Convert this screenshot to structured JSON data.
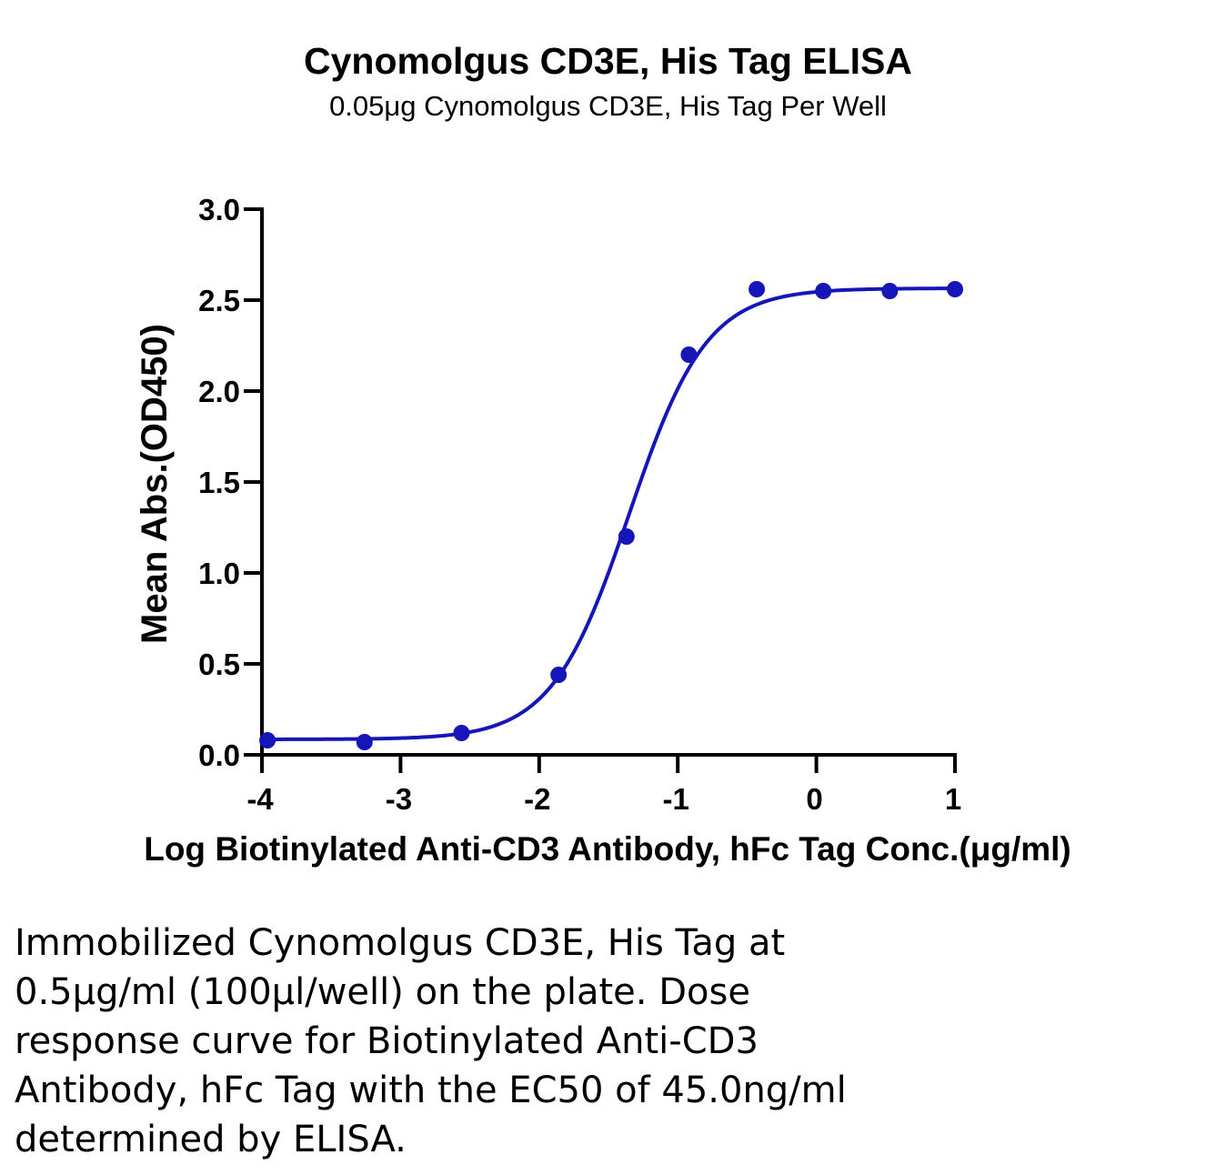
{
  "chart_data": {
    "type": "scatter",
    "title": "Cynomolgus CD3E, His Tag ELISA",
    "subtitle": "0.05μg Cynomolgus CD3E, His Tag Per Well",
    "xlabel": "Log Biotinylated Anti-CD3 Antibody, hFc Tag Conc.(μg/ml)",
    "ylabel": "Mean Abs.(OD450)",
    "xlim": [
      -4,
      1
    ],
    "ylim": [
      0,
      3.0
    ],
    "xticks": [
      -4,
      -3,
      -2,
      -1,
      0,
      1
    ],
    "xtick_labels": [
      "-4",
      "-3",
      "-2",
      "-1",
      "0",
      "1"
    ],
    "yticks": [
      0,
      0.5,
      1.0,
      1.5,
      2.0,
      2.5,
      3.0
    ],
    "ytick_labels": [
      "0.0",
      "0.5",
      "1.0",
      "1.5",
      "2.0",
      "2.5",
      "3.0"
    ],
    "grid": false,
    "series": [
      {
        "color": "#1515b8",
        "x": [
          -3.96,
          -3.26,
          -2.56,
          -1.86,
          -1.37,
          -0.92,
          -0.43,
          0.05,
          0.53,
          1.0
        ],
        "y": [
          0.08,
          0.07,
          0.12,
          0.44,
          1.2,
          2.2,
          2.56,
          2.55,
          2.55,
          2.56
        ],
        "fit": {
          "model": "4PL",
          "bottom": 0.085,
          "top": 2.565,
          "logEC50": -1.35,
          "hill": 1.55
        }
      }
    ]
  },
  "caption": [
    "Immobilized Cynomolgus CD3E, His Tag at",
    "0.5μg/ml (100μl/well) on the plate. Dose",
    "response curve for Biotinylated Anti-CD3",
    "Antibody, hFc Tag with the EC50 of 45.0ng/ml",
    "determined by ELISA."
  ]
}
